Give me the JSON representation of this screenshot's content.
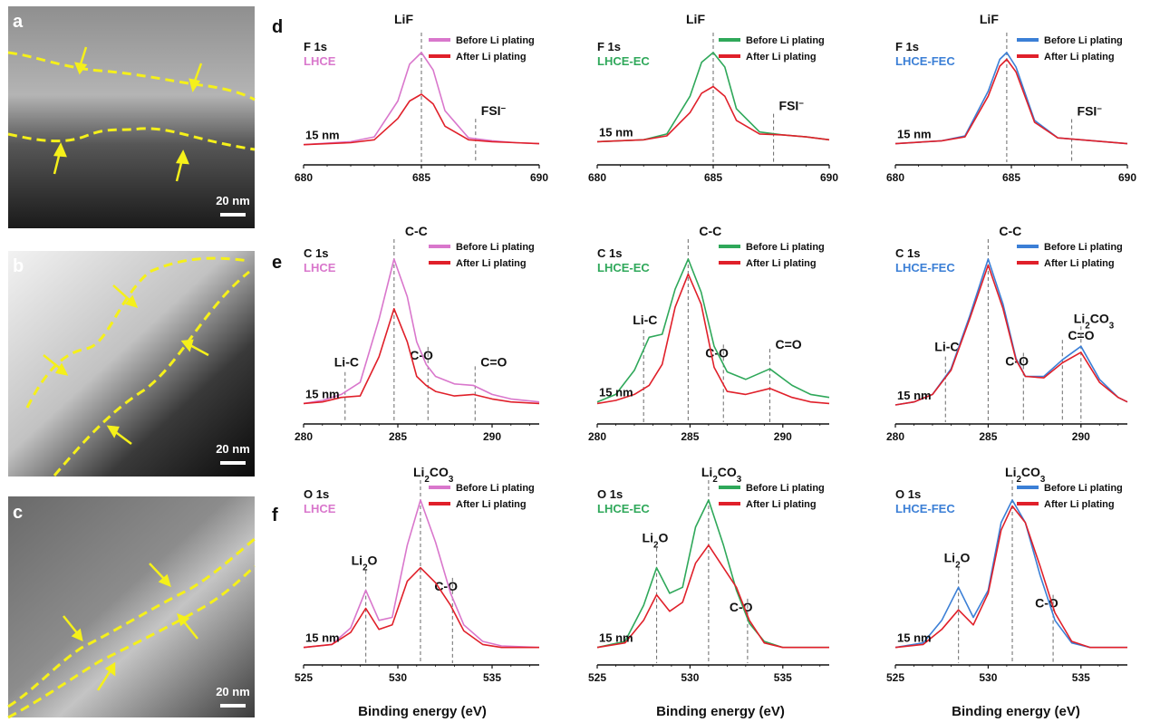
{
  "colors": {
    "pink": "#d977cc",
    "red": "#e0202a",
    "green": "#2fa85a",
    "blue": "#3b7fd6",
    "yellow": "#f5f01a"
  },
  "tem_panels": [
    {
      "label": "a",
      "scale": "20 nm"
    },
    {
      "label": "b",
      "scale": "20 nm"
    },
    {
      "label": "c",
      "scale": "20 nm"
    }
  ],
  "row_labels": [
    "d",
    "e",
    "f"
  ],
  "legend": {
    "before": "Before Li plating",
    "after": "After Li plating"
  },
  "xlabel": "Binding energy (eV)",
  "chart_data": [
    {
      "type": "line",
      "row": 0,
      "col": 0,
      "region": "F 1s",
      "sample": "LHCE",
      "color": "#d977cc",
      "xlim": [
        680,
        690
      ],
      "xticks": [
        680,
        685,
        690
      ],
      "depth_label": "15 nm",
      "peaks": [
        {
          "label": "LiF",
          "x": 685.0
        },
        {
          "label": "FSI⁻",
          "x": 687.3
        }
      ],
      "series": [
        {
          "name": "Before Li plating",
          "x": [
            680,
            682,
            683,
            684,
            684.5,
            685,
            685.5,
            686,
            687,
            688,
            689,
            690
          ],
          "y": [
            0.05,
            0.08,
            0.13,
            0.5,
            0.88,
            1.0,
            0.82,
            0.4,
            0.12,
            0.09,
            0.07,
            0.06
          ]
        },
        {
          "name": "After Li plating",
          "x": [
            680,
            682,
            683,
            684,
            684.5,
            685,
            685.5,
            686,
            687,
            688,
            689,
            690
          ],
          "y": [
            0.05,
            0.07,
            0.1,
            0.32,
            0.5,
            0.57,
            0.47,
            0.24,
            0.1,
            0.08,
            0.07,
            0.06
          ]
        }
      ]
    },
    {
      "type": "line",
      "row": 0,
      "col": 1,
      "region": "F 1s",
      "sample": "LHCE-EC",
      "color": "#2fa85a",
      "xlim": [
        680,
        690
      ],
      "xticks": [
        680,
        685,
        690
      ],
      "depth_label": "15 nm",
      "peaks": [
        {
          "label": "LiF",
          "x": 685.0
        },
        {
          "label": "FSI⁻",
          "x": 687.6
        }
      ],
      "series": [
        {
          "name": "Before Li plating",
          "x": [
            680,
            682,
            683,
            684,
            684.5,
            685,
            685.5,
            686,
            687,
            688,
            689,
            690
          ],
          "y": [
            0.08,
            0.1,
            0.16,
            0.55,
            0.9,
            1.0,
            0.85,
            0.42,
            0.18,
            0.15,
            0.13,
            0.1
          ]
        },
        {
          "name": "After Li plating",
          "x": [
            680,
            682,
            683,
            684,
            684.5,
            685,
            685.5,
            686,
            687,
            688,
            689,
            690
          ],
          "y": [
            0.08,
            0.1,
            0.14,
            0.38,
            0.58,
            0.65,
            0.55,
            0.3,
            0.16,
            0.15,
            0.13,
            0.1
          ]
        }
      ]
    },
    {
      "type": "line",
      "row": 0,
      "col": 2,
      "region": "F 1s",
      "sample": "LHCE-FEC",
      "color": "#3b7fd6",
      "xlim": [
        680,
        690
      ],
      "xticks": [
        680,
        685,
        690
      ],
      "depth_label": "15 nm",
      "peaks": [
        {
          "label": "LiF",
          "x": 684.8
        },
        {
          "label": "FSI⁻",
          "x": 687.6
        }
      ],
      "series": [
        {
          "name": "Before Li plating",
          "x": [
            680,
            682,
            683,
            684,
            684.5,
            684.8,
            685.2,
            686,
            687,
            688,
            689,
            690
          ],
          "y": [
            0.06,
            0.09,
            0.14,
            0.6,
            0.93,
            1.0,
            0.85,
            0.3,
            0.12,
            0.1,
            0.08,
            0.06
          ]
        },
        {
          "name": "After Li plating",
          "x": [
            680,
            682,
            683,
            684,
            684.5,
            684.8,
            685.2,
            686,
            687,
            688,
            689,
            690
          ],
          "y": [
            0.06,
            0.09,
            0.13,
            0.55,
            0.86,
            0.93,
            0.8,
            0.28,
            0.12,
            0.1,
            0.08,
            0.06
          ]
        }
      ]
    },
    {
      "type": "line",
      "row": 1,
      "col": 0,
      "region": "C 1s",
      "sample": "LHCE",
      "color": "#d977cc",
      "xlim": [
        280,
        292.5
      ],
      "xticks": [
        280,
        285,
        290
      ],
      "depth_label": "15 nm",
      "peaks": [
        {
          "label": "Li-C",
          "x": 282.2
        },
        {
          "label": "C-C",
          "x": 284.8
        },
        {
          "label": "C-O",
          "x": 286.6
        },
        {
          "label": "C=O",
          "x": 289.1
        }
      ],
      "series": [
        {
          "name": "Before Li plating",
          "x": [
            280,
            281,
            282,
            283,
            284,
            284.8,
            285.5,
            286,
            286.5,
            287,
            288,
            289,
            290,
            291,
            292.5
          ],
          "y": [
            0.04,
            0.06,
            0.1,
            0.18,
            0.6,
            1.0,
            0.75,
            0.45,
            0.3,
            0.22,
            0.17,
            0.16,
            0.1,
            0.07,
            0.05
          ]
        },
        {
          "name": "After Li plating",
          "x": [
            280,
            281,
            282,
            283,
            284,
            284.8,
            285.5,
            286,
            286.5,
            287,
            288,
            289,
            290,
            291,
            292.5
          ],
          "y": [
            0.04,
            0.05,
            0.08,
            0.09,
            0.35,
            0.67,
            0.45,
            0.22,
            0.16,
            0.12,
            0.09,
            0.1,
            0.07,
            0.05,
            0.04
          ]
        }
      ]
    },
    {
      "type": "line",
      "row": 1,
      "col": 1,
      "region": "C 1s",
      "sample": "LHCE-EC",
      "color": "#2fa85a",
      "xlim": [
        280,
        292.5
      ],
      "xticks": [
        280,
        285,
        290
      ],
      "depth_label": "15 nm",
      "peaks": [
        {
          "label": "Li-C",
          "x": 282.5
        },
        {
          "label": "C-C",
          "x": 284.9
        },
        {
          "label": "C-O",
          "x": 286.8
        },
        {
          "label": "C=O",
          "x": 289.3
        }
      ],
      "series": [
        {
          "name": "Before Li plating",
          "x": [
            280,
            281,
            282,
            282.8,
            283.5,
            284.2,
            284.9,
            285.6,
            286.3,
            287,
            288,
            289.3,
            290.5,
            291.5,
            292.5
          ],
          "y": [
            0.05,
            0.1,
            0.26,
            0.48,
            0.5,
            0.8,
            1.0,
            0.78,
            0.42,
            0.25,
            0.2,
            0.27,
            0.16,
            0.1,
            0.08
          ]
        },
        {
          "name": "After Li plating",
          "x": [
            280,
            281,
            282,
            282.8,
            283.5,
            284.2,
            284.9,
            285.6,
            286.3,
            287,
            288,
            289.3,
            290.5,
            291.5,
            292.5
          ],
          "y": [
            0.04,
            0.06,
            0.1,
            0.16,
            0.3,
            0.68,
            0.9,
            0.7,
            0.28,
            0.12,
            0.1,
            0.14,
            0.08,
            0.05,
            0.04
          ]
        }
      ]
    },
    {
      "type": "line",
      "row": 1,
      "col": 2,
      "region": "C 1s",
      "sample": "LHCE-FEC",
      "color": "#3b7fd6",
      "xlim": [
        280,
        292.5
      ],
      "xticks": [
        280,
        285,
        290
      ],
      "depth_label": "15 nm",
      "peaks": [
        {
          "label": "Li-C",
          "x": 282.7
        },
        {
          "label": "C-C",
          "x": 285.0
        },
        {
          "label": "C-O",
          "x": 286.9
        },
        {
          "label": "C=O",
          "x": 289.0
        },
        {
          "label": "Li₂CO₃",
          "x": 290.0
        }
      ],
      "series": [
        {
          "name": "Before Li plating",
          "x": [
            280,
            281,
            282,
            283,
            284,
            285,
            285.8,
            286.5,
            287,
            288,
            289,
            290,
            291,
            292,
            292.5
          ],
          "y": [
            0.03,
            0.05,
            0.1,
            0.27,
            0.62,
            1.0,
            0.7,
            0.34,
            0.22,
            0.22,
            0.33,
            0.42,
            0.2,
            0.08,
            0.05
          ]
        },
        {
          "name": "After Li plating",
          "x": [
            280,
            281,
            282,
            283,
            284,
            285,
            285.8,
            286.5,
            287,
            288,
            289,
            290,
            291,
            292,
            292.5
          ],
          "y": [
            0.03,
            0.05,
            0.1,
            0.26,
            0.6,
            0.96,
            0.67,
            0.33,
            0.22,
            0.21,
            0.31,
            0.38,
            0.18,
            0.08,
            0.05
          ]
        }
      ]
    },
    {
      "type": "line",
      "row": 2,
      "col": 0,
      "region": "O 1s",
      "sample": "LHCE",
      "color": "#d977cc",
      "xlim": [
        525,
        537.5
      ],
      "xticks": [
        525,
        530,
        535
      ],
      "depth_label": "15 nm",
      "peaks": [
        {
          "label": "Li₂O",
          "x": 528.3
        },
        {
          "label": "Li₂CO₃",
          "x": 531.2
        },
        {
          "label": "C-O",
          "x": 532.9
        }
      ],
      "series": [
        {
          "name": "Before Li plating",
          "x": [
            525,
            526.5,
            527.5,
            528.3,
            529,
            529.7,
            530.5,
            531.2,
            532,
            532.8,
            533.5,
            534.5,
            535.5,
            537.5
          ],
          "y": [
            0.02,
            0.04,
            0.15,
            0.4,
            0.2,
            0.22,
            0.7,
            1.0,
            0.72,
            0.38,
            0.17,
            0.06,
            0.03,
            0.02
          ]
        },
        {
          "name": "After Li plating",
          "x": [
            525,
            526.5,
            527.5,
            528.3,
            529,
            529.7,
            530.5,
            531.2,
            532,
            532.8,
            533.5,
            534.5,
            535.5,
            537.5
          ],
          "y": [
            0.02,
            0.04,
            0.12,
            0.28,
            0.14,
            0.17,
            0.46,
            0.55,
            0.45,
            0.3,
            0.13,
            0.04,
            0.02,
            0.02
          ]
        }
      ]
    },
    {
      "type": "line",
      "row": 2,
      "col": 1,
      "region": "O 1s",
      "sample": "LHCE-EC",
      "color": "#2fa85a",
      "xlim": [
        525,
        537.5
      ],
      "xticks": [
        525,
        530,
        535
      ],
      "depth_label": "15 nm",
      "peaks": [
        {
          "label": "Li₂O",
          "x": 528.2
        },
        {
          "label": "Li₂CO₃",
          "x": 531.0
        },
        {
          "label": "C-O",
          "x": 533.1
        }
      ],
      "series": [
        {
          "name": "Before Li plating",
          "x": [
            525,
            526.5,
            527.5,
            528.2,
            528.9,
            529.6,
            530.3,
            531.0,
            531.8,
            532.5,
            533.2,
            534,
            535,
            537.5
          ],
          "y": [
            0.02,
            0.06,
            0.3,
            0.55,
            0.38,
            0.42,
            0.82,
            1.0,
            0.7,
            0.4,
            0.18,
            0.06,
            0.02,
            0.02
          ]
        },
        {
          "name": "After Li plating",
          "x": [
            525,
            526.5,
            527.5,
            528.2,
            528.9,
            529.6,
            530.3,
            531.0,
            531.8,
            532.5,
            533.2,
            534,
            535,
            537.5
          ],
          "y": [
            0.02,
            0.05,
            0.2,
            0.37,
            0.26,
            0.32,
            0.58,
            0.7,
            0.55,
            0.42,
            0.2,
            0.05,
            0.02,
            0.02
          ]
        }
      ]
    },
    {
      "type": "line",
      "row": 2,
      "col": 2,
      "region": "O 1s",
      "sample": "LHCE-FEC",
      "color": "#3b7fd6",
      "xlim": [
        525,
        537.5
      ],
      "xticks": [
        525,
        530,
        535
      ],
      "depth_label": "15 nm",
      "peaks": [
        {
          "label": "Li₂O",
          "x": 528.4
        },
        {
          "label": "Li₂CO₃",
          "x": 531.3
        },
        {
          "label": "C-O",
          "x": 533.5
        }
      ],
      "series": [
        {
          "name": "Before Li plating",
          "x": [
            525,
            526.5,
            527.5,
            528.4,
            529.2,
            530,
            530.7,
            531.3,
            532,
            532.8,
            533.6,
            534.5,
            535.5,
            537.5
          ],
          "y": [
            0.02,
            0.05,
            0.2,
            0.42,
            0.22,
            0.4,
            0.85,
            1.0,
            0.85,
            0.5,
            0.2,
            0.05,
            0.02,
            0.02
          ]
        },
        {
          "name": "After Li plating",
          "x": [
            525,
            526.5,
            527.5,
            528.4,
            529.2,
            530,
            530.7,
            531.3,
            532,
            532.8,
            533.6,
            534.5,
            535.5,
            537.5
          ],
          "y": [
            0.02,
            0.04,
            0.14,
            0.27,
            0.17,
            0.38,
            0.8,
            0.96,
            0.85,
            0.56,
            0.25,
            0.06,
            0.02,
            0.02
          ]
        }
      ]
    }
  ]
}
